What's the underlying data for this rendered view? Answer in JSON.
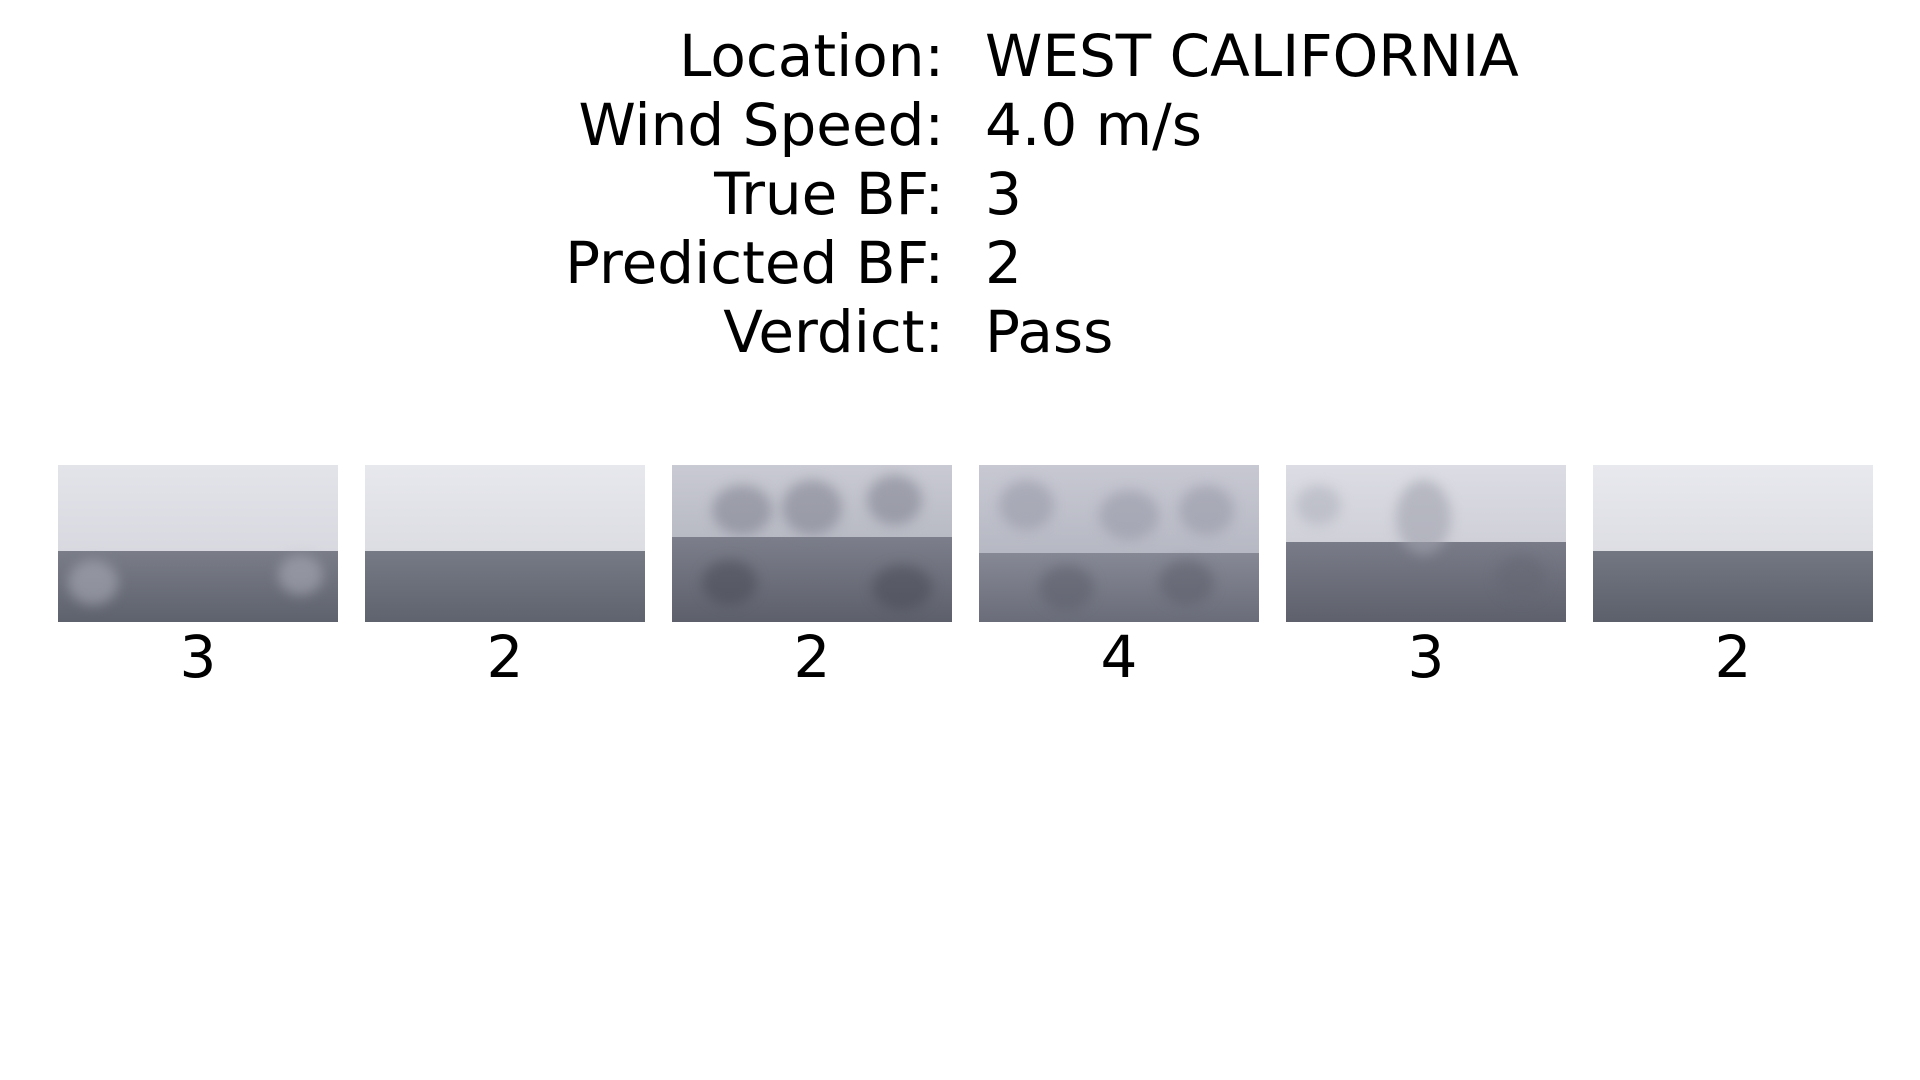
{
  "info": {
    "rows": [
      {
        "label": "Location:",
        "value": "WEST CALIFORNIA"
      },
      {
        "label": "Wind Speed:",
        "value": "4.0 m/s"
      },
      {
        "label": "True BF:",
        "value": "3"
      },
      {
        "label": "Predicted BF:",
        "value": "2"
      },
      {
        "label": "Verdict:",
        "value": "Pass"
      }
    ]
  },
  "thumbnails": [
    {
      "label": "3"
    },
    {
      "label": "2"
    },
    {
      "label": "2"
    },
    {
      "label": "4"
    },
    {
      "label": "3"
    },
    {
      "label": "2"
    }
  ],
  "colors": {
    "sky": "#e6e7ec",
    "sea": "#6d717c",
    "text": "#000000",
    "background": "#ffffff"
  }
}
